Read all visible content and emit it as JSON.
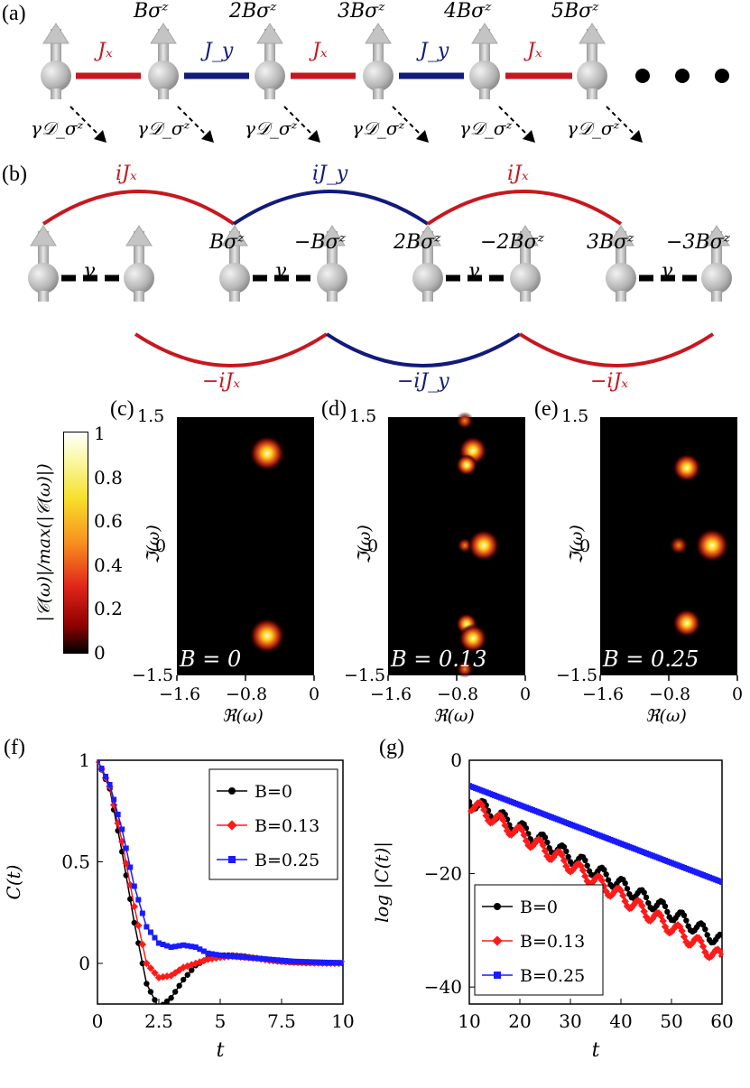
{
  "panels": {
    "a": "(a)",
    "b": "(b)",
    "c": "(c)",
    "d": "(d)",
    "e": "(e)",
    "f": "(f)",
    "g": "(g)"
  },
  "panel_a": {
    "fields": [
      "Bσᶻ",
      "2Bσᶻ",
      "3Bσᶻ",
      "4Bσᶻ",
      "5Bσᶻ"
    ],
    "couplings": [
      "Jₓ",
      "J_y",
      "Jₓ",
      "J_y",
      "Jₓ"
    ],
    "dissipator": "γ𝒟_σᶻ"
  },
  "panel_b": {
    "top_arcs": [
      "iJₓ",
      "iJ_y",
      "iJₓ"
    ],
    "bottom_arcs": [
      "−iJₓ",
      "−iJ_y",
      "−iJₓ"
    ],
    "fields": [
      "Bσᶻ",
      "−Bσᶻ",
      "2Bσᶻ",
      "−2Bσᶻ",
      "3Bσᶻ",
      "−3Bσᶻ"
    ],
    "gamma": "γ"
  },
  "colorbar": {
    "label": "|𝒞(ω)|/max(|𝒞(ω)|)",
    "ticks": [
      "0",
      "0.2",
      "0.4",
      "0.6",
      "0.8",
      "1"
    ]
  },
  "spectra": {
    "xlabel": "ℜ(ω)",
    "ylabel": "ℑ(ω)",
    "xticks": [
      "−1.6",
      "−0.8",
      "0"
    ],
    "yticks": [
      "1.5",
      "0",
      "−1.5"
    ],
    "B_labels": [
      "B = 0",
      "B = 0.13",
      "B = 0.25"
    ]
  },
  "colors": {
    "red": "#c8171e",
    "blue": "#121a7c",
    "black": "#000000",
    "series_blue": "#1a1aff",
    "series_red": "#ff1a1a"
  },
  "chart_data": [
    {
      "type": "line",
      "id": "f",
      "xlabel": "t",
      "ylabel": "C(t)",
      "xlim": [
        0,
        10
      ],
      "ylim": [
        -0.2,
        1.0
      ],
      "xticks": [
        "0",
        "2.5",
        "5",
        "7.5",
        "10"
      ],
      "yticks": [
        "0",
        "0.5",
        "1"
      ],
      "legend": "top-right",
      "series": [
        {
          "name": "B=0",
          "x": [
            0,
            0.5,
            1.0,
            1.5,
            2.0,
            2.5,
            3.0,
            3.5,
            4.0,
            4.5,
            5.0,
            5.5,
            6.0,
            6.5,
            7.0,
            7.5,
            8.0,
            8.5,
            9.0,
            9.5,
            10.0
          ],
          "values": [
            1.0,
            0.86,
            0.55,
            0.2,
            -0.1,
            -0.22,
            -0.17,
            -0.08,
            -0.01,
            0.025,
            0.04,
            0.04,
            0.035,
            0.025,
            0.015,
            0.008,
            0.004,
            0.002,
            0.001,
            0.0,
            0.0
          ]
        },
        {
          "name": "B=0.13",
          "x": [
            0,
            0.5,
            1.0,
            1.5,
            2.0,
            2.5,
            3.0,
            3.5,
            4.0,
            4.5,
            5.0,
            5.5,
            6.0,
            6.5,
            7.0,
            7.5,
            8.0,
            8.5,
            9.0,
            9.5,
            10.0
          ],
          "values": [
            1.0,
            0.87,
            0.6,
            0.28,
            0.0,
            -0.07,
            -0.06,
            -0.02,
            0.0,
            0.02,
            0.03,
            0.035,
            0.03,
            0.025,
            0.015,
            0.01,
            0.006,
            0.003,
            0.002,
            0.001,
            0.0
          ]
        },
        {
          "name": "B=0.25",
          "x": [
            0,
            0.5,
            1.0,
            1.5,
            2.0,
            2.5,
            3.0,
            3.5,
            4.0,
            4.5,
            5.0,
            5.5,
            6.0,
            6.5,
            7.0,
            7.5,
            8.0,
            8.5,
            9.0,
            9.5,
            10.0
          ],
          "values": [
            1.0,
            0.88,
            0.66,
            0.38,
            0.18,
            0.1,
            0.08,
            0.09,
            0.08,
            0.05,
            0.04,
            0.035,
            0.03,
            0.025,
            0.02,
            0.015,
            0.01,
            0.008,
            0.006,
            0.004,
            0.003
          ]
        }
      ]
    },
    {
      "type": "line",
      "id": "g",
      "xlabel": "t",
      "ylabel": "log |C(t)|",
      "xlim": [
        10,
        60
      ],
      "ylim": [
        -43,
        0
      ],
      "xticks": [
        "10",
        "20",
        "30",
        "40",
        "50",
        "60"
      ],
      "yticks": [
        "0",
        "−20",
        "−40"
      ],
      "legend": "bottom-left",
      "series": [
        {
          "name": "B=0",
          "x": [
            10,
            15,
            20,
            25,
            30,
            35,
            40,
            45,
            50,
            55,
            60
          ],
          "values": [
            -7,
            -9.5,
            -12,
            -14.5,
            -17,
            -19.5,
            -22,
            -24.5,
            -27,
            -29.5,
            -32
          ]
        },
        {
          "name": "B=0.13",
          "x": [
            10,
            15,
            20,
            25,
            30,
            35,
            40,
            45,
            50,
            55,
            60
          ],
          "values": [
            -7.5,
            -10.3,
            -13,
            -15.8,
            -18.5,
            -21.3,
            -24,
            -26.8,
            -29.5,
            -32.3,
            -35
          ]
        },
        {
          "name": "B=0.25",
          "x": [
            10,
            15,
            20,
            25,
            30,
            35,
            40,
            45,
            50,
            55,
            60
          ],
          "values": [
            -4.5,
            -6.2,
            -7.9,
            -9.6,
            -11.3,
            -13,
            -14.7,
            -16.4,
            -18.1,
            -19.8,
            -21.5
          ]
        }
      ]
    }
  ]
}
